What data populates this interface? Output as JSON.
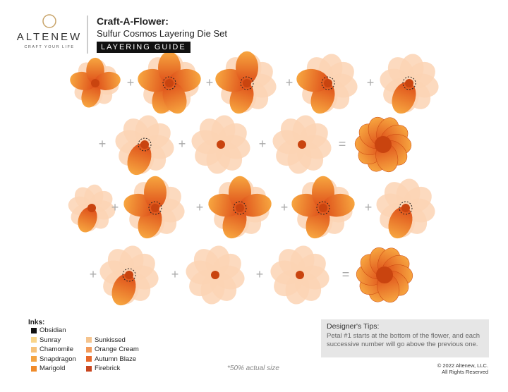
{
  "brand": {
    "name": "ALTENEW",
    "tagline": "CRAFT YOUR LIFE"
  },
  "header": {
    "title": "Craft-A-Flower:",
    "subtitle": "Sulfur Cosmos Layering Die Set",
    "badge": "LAYERING GUIDE"
  },
  "steps": {
    "operators": [
      [
        "+",
        "+",
        "+",
        "+"
      ],
      [
        "+",
        "+",
        "+",
        "="
      ],
      [
        "+",
        "+",
        "+",
        "+"
      ],
      [
        "+",
        "+",
        "+",
        "="
      ]
    ]
  },
  "inks": {
    "title": "Inks:",
    "items": [
      {
        "name": "Obsidian",
        "color": "#111111"
      },
      {
        "name": "Sunray",
        "color": "#f9d58a"
      },
      {
        "name": "Chamomile",
        "color": "#f6c27a"
      },
      {
        "name": "Snapdragon",
        "color": "#f3a443"
      },
      {
        "name": "Marigold",
        "color": "#ef8a2a"
      },
      {
        "name": "Sunkissed",
        "color": "#f5c48e"
      },
      {
        "name": "Orange Cream",
        "color": "#f29a5a"
      },
      {
        "name": "Autumn Blaze",
        "color": "#e8682a"
      },
      {
        "name": "Firebrick",
        "color": "#c8461f"
      }
    ]
  },
  "tips": {
    "title": "Designer's Tips:",
    "text": "Petal #1 starts at the bottom of the flower, and each successive number will go above the previous one."
  },
  "scale_note": "*50% actual size",
  "copyright": [
    "© 2022 Altenew, LLC.",
    "All Rights Reserved"
  ]
}
